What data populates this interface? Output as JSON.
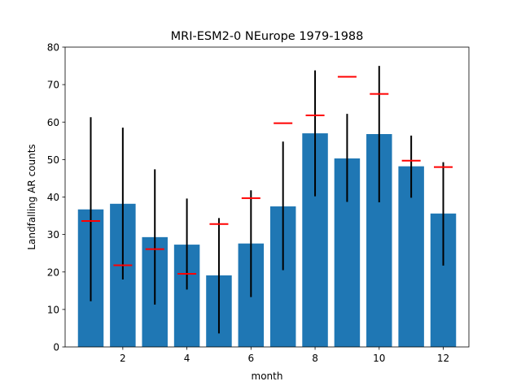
{
  "chart_data": {
    "type": "bar",
    "title": "MRI-ESM2-0 NEurope 1979-1988",
    "xlabel": "month",
    "ylabel": "Landfalling AR counts",
    "xlim": [
      0.2,
      12.8
    ],
    "ylim": [
      0,
      80
    ],
    "xticks": [
      2,
      4,
      6,
      8,
      10,
      12
    ],
    "yticks": [
      0,
      10,
      20,
      30,
      40,
      50,
      60,
      70,
      80
    ],
    "grid": false,
    "bar_color": "#1f77b4",
    "errorbar_color": "#000000",
    "marker_color": "#ff0000",
    "x": [
      1,
      2,
      3,
      4,
      5,
      6,
      7,
      8,
      9,
      10,
      11,
      12
    ],
    "values": [
      36.7,
      38.2,
      29.3,
      27.3,
      19.1,
      27.6,
      37.5,
      57.0,
      50.3,
      56.8,
      48.2,
      35.6
    ],
    "error_low": [
      12.2,
      18.0,
      11.3,
      15.3,
      3.6,
      13.3,
      20.5,
      40.2,
      38.7,
      38.6,
      39.8,
      21.7
    ],
    "error_high": [
      61.3,
      58.5,
      47.4,
      39.6,
      34.4,
      41.8,
      54.8,
      73.8,
      62.2,
      75.0,
      56.4,
      49.3
    ],
    "markers": [
      33.6,
      21.8,
      26.1,
      19.5,
      32.8,
      39.7,
      59.7,
      61.8,
      72.1,
      67.5,
      49.7,
      48.0
    ]
  }
}
